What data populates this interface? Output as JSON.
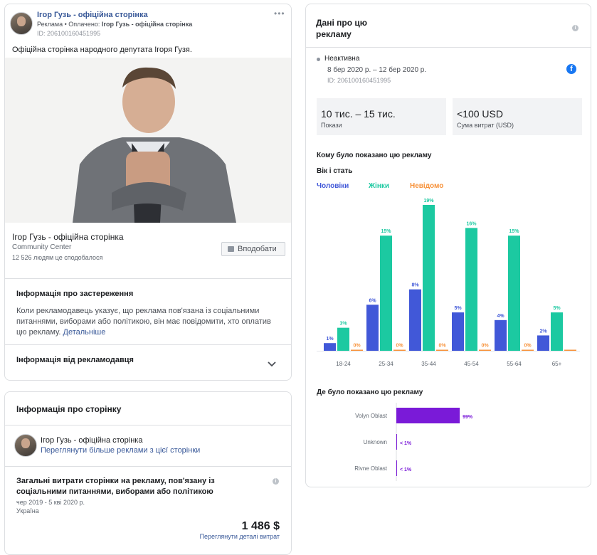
{
  "ad": {
    "page_name": "Ігор Гузь - офіційна сторінка",
    "sponsored_label": "Реклама • Оплачено: ",
    "paid_by": "Ігор Гузь - офіційна сторінка",
    "ad_id": "ID: 206100160451995",
    "more_icon": "more-dots-icon",
    "body_text": "Офіційна сторінка народного депутата Ігоря Гузя.",
    "footer_title": "Ігор Гузь - офіційна сторінка",
    "footer_category": "Community Center",
    "footer_likes": "12 526 людям це сподобалося",
    "like_button": "Вподобати"
  },
  "disclaimer": {
    "title": "Інформація про застереження",
    "text": "Коли рекламодавець указує, що реклама пов'язана із соціальними питаннями, виборами або політикою, він має повідомити, хто оплатив цю рекламу.",
    "details_link": "Детальніше"
  },
  "advertiser_info": {
    "title": "Інформація від рекламодавця",
    "icon": "chevron-down-icon"
  },
  "page_info": {
    "title": "Інформація про сторінку",
    "page_name": "Ігор Гузь - офіційна сторінка",
    "more_ads_link": "Переглянути більше реклами з цієї сторінки",
    "spend_title": "Загальні витрати сторінки на рекламу, пов'язану із соціальними питаннями, виборами або політикою",
    "spend_period": "чер 2019 - 5 кві 2020 р.",
    "spend_country": "Україна",
    "spend_amount": "1 486 $",
    "spend_details_link": "Переглянути деталі витрат"
  },
  "ad_data": {
    "title": "Дані про цю рекламу",
    "status": "Неактивна",
    "dates": "8 бер 2020 р. – 12 бер 2020 р.",
    "ad_id": "ID: 206100160451995",
    "platform_icon": "facebook-icon",
    "impressions_value": "10 тис. – 15 тис.",
    "impressions_label": "Покази",
    "spend_value": "<100 USD",
    "spend_label": "Сума витрат (USD)",
    "audience_title": "Кому було показано цю рекламу",
    "age_gender_title": "Вік і стать",
    "locations_title": "Де було показано цю рекламу"
  },
  "colors": {
    "men": "#4158d8",
    "women": "#1cc9a1",
    "unknown": "#f7923a",
    "region": "#7a1ad8",
    "link": "#385898"
  },
  "chart_data": [
    {
      "type": "bar",
      "title": "Вік і стать",
      "categories": [
        "18-24",
        "25-34",
        "35-44",
        "45-54",
        "55-64",
        "65+"
      ],
      "series": [
        {
          "name": "Чоловіки",
          "values": [
            1,
            6,
            8,
            5,
            4,
            2
          ],
          "labels": [
            "1%",
            "6%",
            "8%",
            "5%",
            "4%",
            "2%"
          ]
        },
        {
          "name": "Жінки",
          "values": [
            3,
            15,
            19,
            16,
            15,
            5
          ],
          "labels": [
            "3%",
            "15%",
            "19%",
            "16%",
            "15%",
            "5%"
          ]
        },
        {
          "name": "Невідомо",
          "values": [
            0,
            0,
            0,
            0,
            0,
            0
          ],
          "labels": [
            "0%",
            "0%",
            "0%",
            "0%",
            "0%",
            ""
          ]
        }
      ],
      "ylim": [
        0,
        19
      ],
      "legend": "top-left"
    },
    {
      "type": "bar",
      "title": "Де було показано цю рекламу",
      "orientation": "horizontal",
      "categories": [
        "Volyn Oblast",
        "Unknown",
        "Rivne Oblast"
      ],
      "values": [
        99,
        0.5,
        0.5
      ],
      "labels": [
        "99%",
        "< 1%",
        "< 1%"
      ]
    }
  ]
}
